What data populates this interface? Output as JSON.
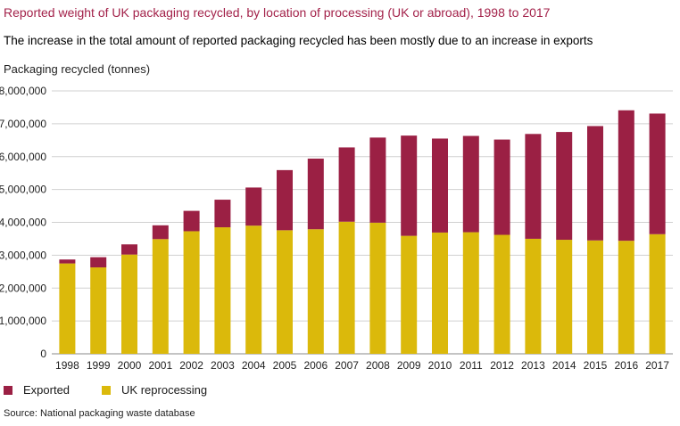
{
  "colors": {
    "exported": "#9b2044",
    "uk": "#dbb90b",
    "axis": "#888888",
    "grid": "#d0d0d0"
  },
  "chart_data": {
    "type": "bar",
    "stacked": true,
    "title": "Reported weight of UK packaging recycled, by location of processing (UK or abroad), 1998 to 2017",
    "subtitle": "The increase in the total amount of reported packaging recycled has been mostly due to an increase in exports",
    "ylabel": "Packaging recycled (tonnes)",
    "xlabel": "",
    "ylim": [
      0,
      8000000
    ],
    "yticks": [
      0,
      1000000,
      2000000,
      3000000,
      4000000,
      5000000,
      6000000,
      7000000,
      8000000
    ],
    "ytick_labels": [
      "0",
      "1,000,000",
      "2,000,000",
      "3,000,000",
      "4,000,000",
      "5,000,000",
      "6,000,000",
      "7,000,000",
      "8,000,000"
    ],
    "grid": true,
    "legend_position": "bottom-left",
    "categories": [
      "1998",
      "1999",
      "2000",
      "2001",
      "2002",
      "2003",
      "2004",
      "2005",
      "2006",
      "2007",
      "2008",
      "2009",
      "2010",
      "2011",
      "2012",
      "2013",
      "2014",
      "2015",
      "2016",
      "2017"
    ],
    "series": [
      {
        "name": "UK reprocessing",
        "values": [
          2750000,
          2630000,
          3020000,
          3490000,
          3730000,
          3850000,
          3900000,
          3760000,
          3790000,
          4020000,
          3990000,
          3590000,
          3690000,
          3700000,
          3620000,
          3500000,
          3470000,
          3450000,
          3440000,
          3640000
        ]
      },
      {
        "name": "Exported",
        "values": [
          120000,
          310000,
          310000,
          420000,
          620000,
          840000,
          1160000,
          1830000,
          2150000,
          2260000,
          2590000,
          3050000,
          2860000,
          2930000,
          2900000,
          3190000,
          3280000,
          3480000,
          3970000,
          3670000
        ]
      }
    ],
    "legend": [
      "Exported",
      "UK reprocessing"
    ],
    "source": "Source: National packaging waste database"
  }
}
